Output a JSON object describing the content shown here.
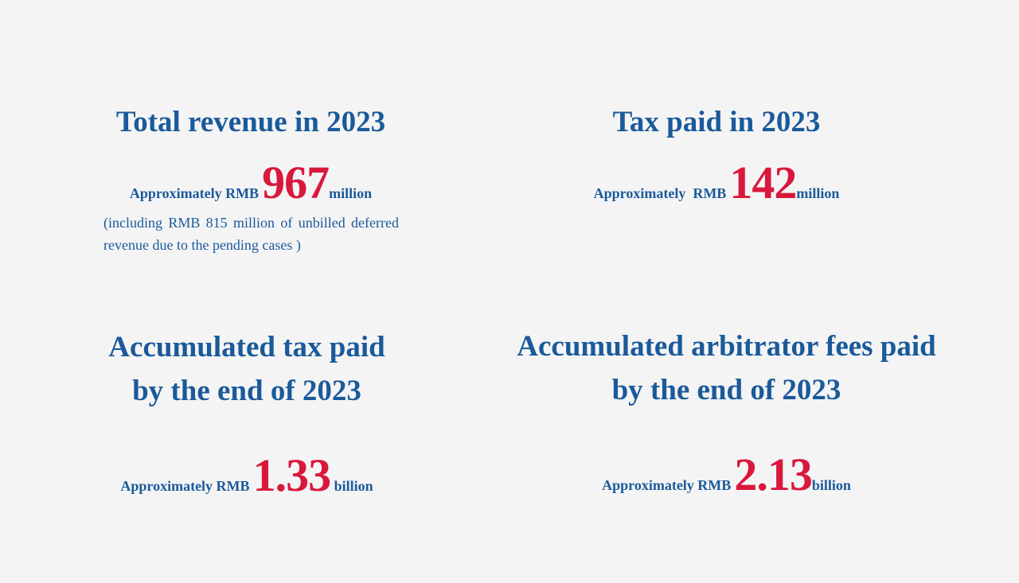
{
  "blocks": [
    {
      "title": "Total revenue in 2023",
      "prefix": "Approximately RMB",
      "value": "967",
      "unit": "million",
      "note": "(including RMB 815 million of unbilled deferred revenue due to the pending cases )"
    },
    {
      "title": "Tax paid in 2023",
      "prefix": "Approximately  RMB",
      "value": "142",
      "unit": "million"
    },
    {
      "title_line1": "Accumulated tax paid",
      "title_line2": "by the end of 2023",
      "prefix": "Approximately RMB",
      "value": "1.33",
      "unit": "billion"
    },
    {
      "title_line1": "Accumulated arbitrator fees paid",
      "title_line2": "by the end of 2023",
      "prefix": "Approximately RMB",
      "value": "2.13",
      "unit": "billion"
    }
  ],
  "colors": {
    "background": "#f4f4f5",
    "title_blue": "#1a5a9a",
    "value_red": "#d9183b"
  }
}
